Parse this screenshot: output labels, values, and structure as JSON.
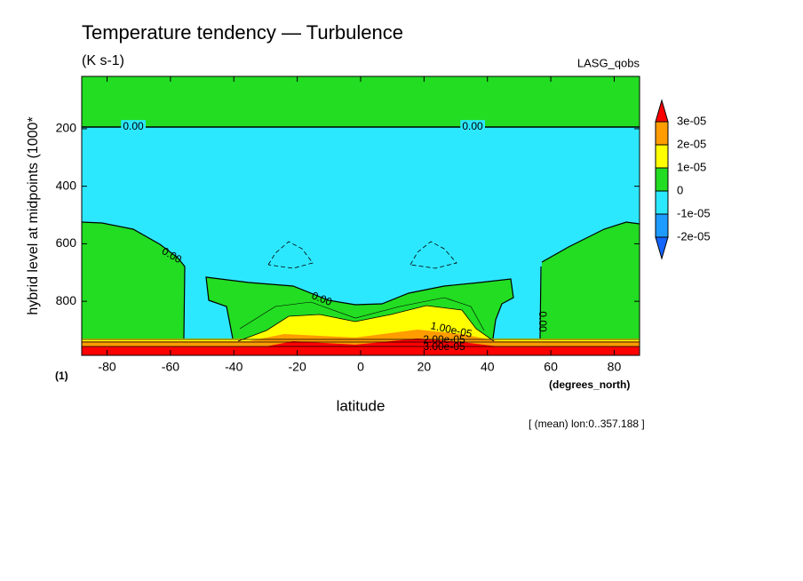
{
  "chart_data": {
    "type": "contour",
    "title": "Temperature tendency — Turbulence",
    "subtitle": "(K s-1)",
    "dataset": "LASG_qobs",
    "x_label": "latitude",
    "x_units": "(degrees_north)",
    "y_label": "hybrid level at midpoints (1000*",
    "y_units": "(1)",
    "annotation": "[ (mean) lon:0..357.188 ]",
    "xlim": [
      -88,
      88
    ],
    "xticks": [
      -80,
      -60,
      -40,
      -20,
      0,
      20,
      40,
      60,
      80
    ],
    "ylim": [
      988,
      18
    ],
    "yticks": [
      200,
      400,
      600,
      800
    ],
    "levels": [
      {
        "value": -2e-05,
        "label": "-2e-05"
      },
      {
        "value": -1e-05,
        "label": "-1e-05"
      },
      0,
      {
        "value": 1e-05,
        "label": "1e-05"
      },
      {
        "value": 2e-05,
        "label": "2e-05"
      },
      {
        "value": 3e-05,
        "label": "3e-05"
      }
    ],
    "colors": [
      "#1464ff",
      "#1e9bff",
      "#2ce8ff",
      "#22dd22",
      "#ffff00",
      "#ff9c00",
      "#ff0000"
    ],
    "contour_labels": [
      {
        "value": 0,
        "label": "0.00"
      },
      {
        "value": 0,
        "label": "0.00"
      },
      {
        "value": 0,
        "label": "0.00"
      },
      {
        "value": 0,
        "label": "0.00"
      },
      {
        "value": 0,
        "label": "0.00"
      },
      {
        "value": 1e-05,
        "label": "1.00e-05"
      },
      {
        "value": 2e-05,
        "label": "2.00e-05"
      },
      {
        "value": 3e-05,
        "label": "3.00e-05"
      }
    ]
  }
}
